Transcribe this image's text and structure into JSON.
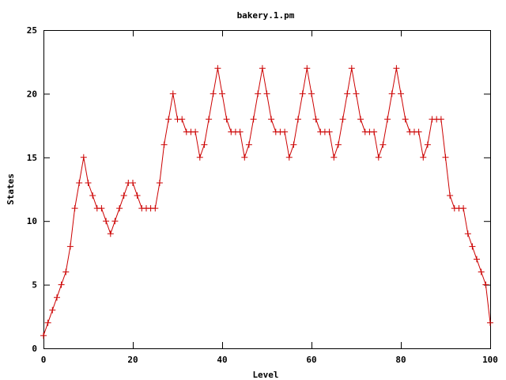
{
  "chart_data": {
    "type": "line",
    "title": "bakery.1.pm",
    "xlabel": "Level",
    "ylabel": "States",
    "xlim": [
      0,
      100
    ],
    "ylim": [
      0,
      25
    ],
    "xticks": [
      0,
      20,
      40,
      60,
      80,
      100
    ],
    "yticks": [
      0,
      5,
      10,
      15,
      20,
      25
    ],
    "grid": false,
    "marker": "plus",
    "line_color": "#cc0000",
    "x": [
      0,
      1,
      2,
      3,
      4,
      5,
      6,
      7,
      8,
      9,
      10,
      11,
      12,
      13,
      14,
      15,
      16,
      17,
      18,
      19,
      20,
      21,
      22,
      23,
      24,
      25,
      26,
      27,
      28,
      29,
      30,
      31,
      32,
      33,
      34,
      35,
      36,
      37,
      38,
      39,
      40,
      41,
      42,
      43,
      44,
      45,
      46,
      47,
      48,
      49,
      50,
      51,
      52,
      53,
      54,
      55,
      56,
      57,
      58,
      59,
      60,
      61,
      62,
      63,
      64,
      65,
      66,
      67,
      68,
      69,
      70,
      71,
      72,
      73,
      74,
      75,
      76,
      77,
      78,
      79,
      80,
      81,
      82,
      83,
      84,
      85,
      86,
      87,
      88,
      89,
      90,
      91,
      92,
      93,
      94,
      95,
      96,
      97,
      98,
      99,
      100
    ],
    "y": [
      1,
      2,
      3,
      4,
      5,
      6,
      8,
      11,
      13,
      15,
      13,
      12,
      11,
      11,
      10,
      9,
      10,
      11,
      12,
      13,
      13,
      12,
      11,
      11,
      11,
      11,
      13,
      16,
      18,
      20,
      18,
      18,
      17,
      17,
      17,
      15,
      16,
      18,
      20,
      22,
      20,
      18,
      17,
      17,
      17,
      15,
      16,
      18,
      20,
      22,
      20,
      18,
      17,
      17,
      17,
      15,
      16,
      18,
      20,
      22,
      20,
      18,
      17,
      17,
      17,
      15,
      16,
      18,
      20,
      22,
      20,
      18,
      17,
      17,
      17,
      15,
      16,
      18,
      20,
      22,
      20,
      18,
      17,
      17,
      17,
      15,
      16,
      18,
      18,
      18,
      15,
      12,
      11,
      11,
      11,
      9,
      8,
      7,
      6,
      5,
      2
    ]
  }
}
